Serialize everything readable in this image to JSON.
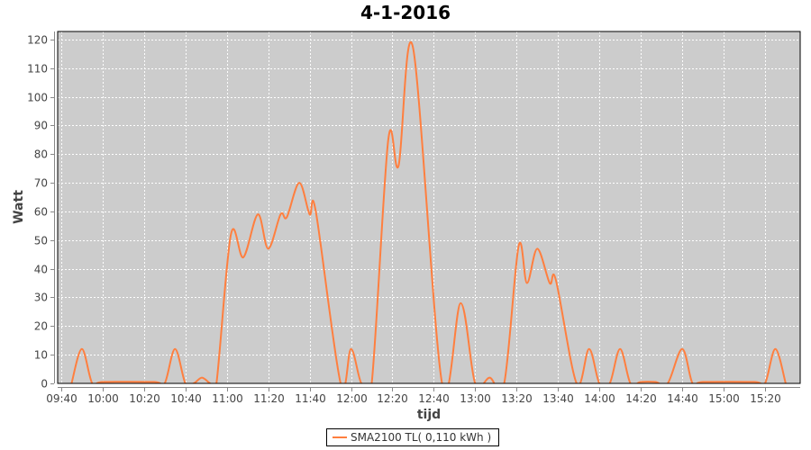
{
  "chart_data": {
    "type": "line",
    "title": "4-1-2016",
    "xlabel": "tijd",
    "ylabel": "Watt",
    "xlim": [
      "09:38",
      "15:37"
    ],
    "ylim": [
      0,
      122.8
    ],
    "x_ticks": [
      "09:40",
      "10:00",
      "10:20",
      "10:40",
      "11:00",
      "11:20",
      "11:40",
      "12:00",
      "12:20",
      "12:40",
      "13:00",
      "13:20",
      "13:40",
      "14:00",
      "14:20",
      "14:40",
      "15:00",
      "15:20"
    ],
    "y_ticks": [
      0,
      10,
      20,
      30,
      40,
      50,
      60,
      70,
      80,
      90,
      100,
      110,
      120
    ],
    "grid": true,
    "legend_position": "bottom",
    "colors": {
      "plot_background": "#cccccc",
      "grid": "#ffffff",
      "series": "#ff7f3f"
    },
    "series": [
      {
        "name": "SMA2100 TL( 0,110 kWh )",
        "x": [
          "09:45",
          "09:50",
          "09:55",
          "10:00",
          "10:25",
          "10:30",
          "10:35",
          "10:40",
          "10:44",
          "10:48",
          "10:52",
          "10:55",
          "11:02",
          "11:08",
          "11:15",
          "11:20",
          "11:26",
          "11:29",
          "11:35",
          "11:40",
          "11:43",
          "11:55",
          "12:00",
          "12:05",
          "12:10",
          "12:18",
          "12:23",
          "12:30",
          "12:44",
          "12:53",
          "13:00",
          "13:07",
          "13:14",
          "13:21",
          "13:25",
          "13:30",
          "13:36",
          "13:39",
          "13:49",
          "13:55",
          "14:00",
          "14:05",
          "14:10",
          "14:15",
          "14:20",
          "14:27",
          "14:33",
          "14:40",
          "14:45",
          "14:50",
          "15:15",
          "15:20",
          "15:25",
          "15:30"
        ],
        "values": [
          0,
          12,
          0,
          0.5,
          0.5,
          0,
          12,
          0,
          0,
          2,
          0,
          0,
          52,
          44,
          59,
          47,
          59,
          58,
          70,
          59,
          60,
          0,
          12,
          0,
          0,
          85,
          76,
          117,
          0,
          28,
          0,
          2,
          0,
          48,
          35,
          47,
          35,
          36,
          0,
          12,
          0,
          0,
          12,
          0,
          0.5,
          0.5,
          0,
          12,
          0,
          0.5,
          0.5,
          0,
          12,
          0
        ]
      }
    ]
  }
}
